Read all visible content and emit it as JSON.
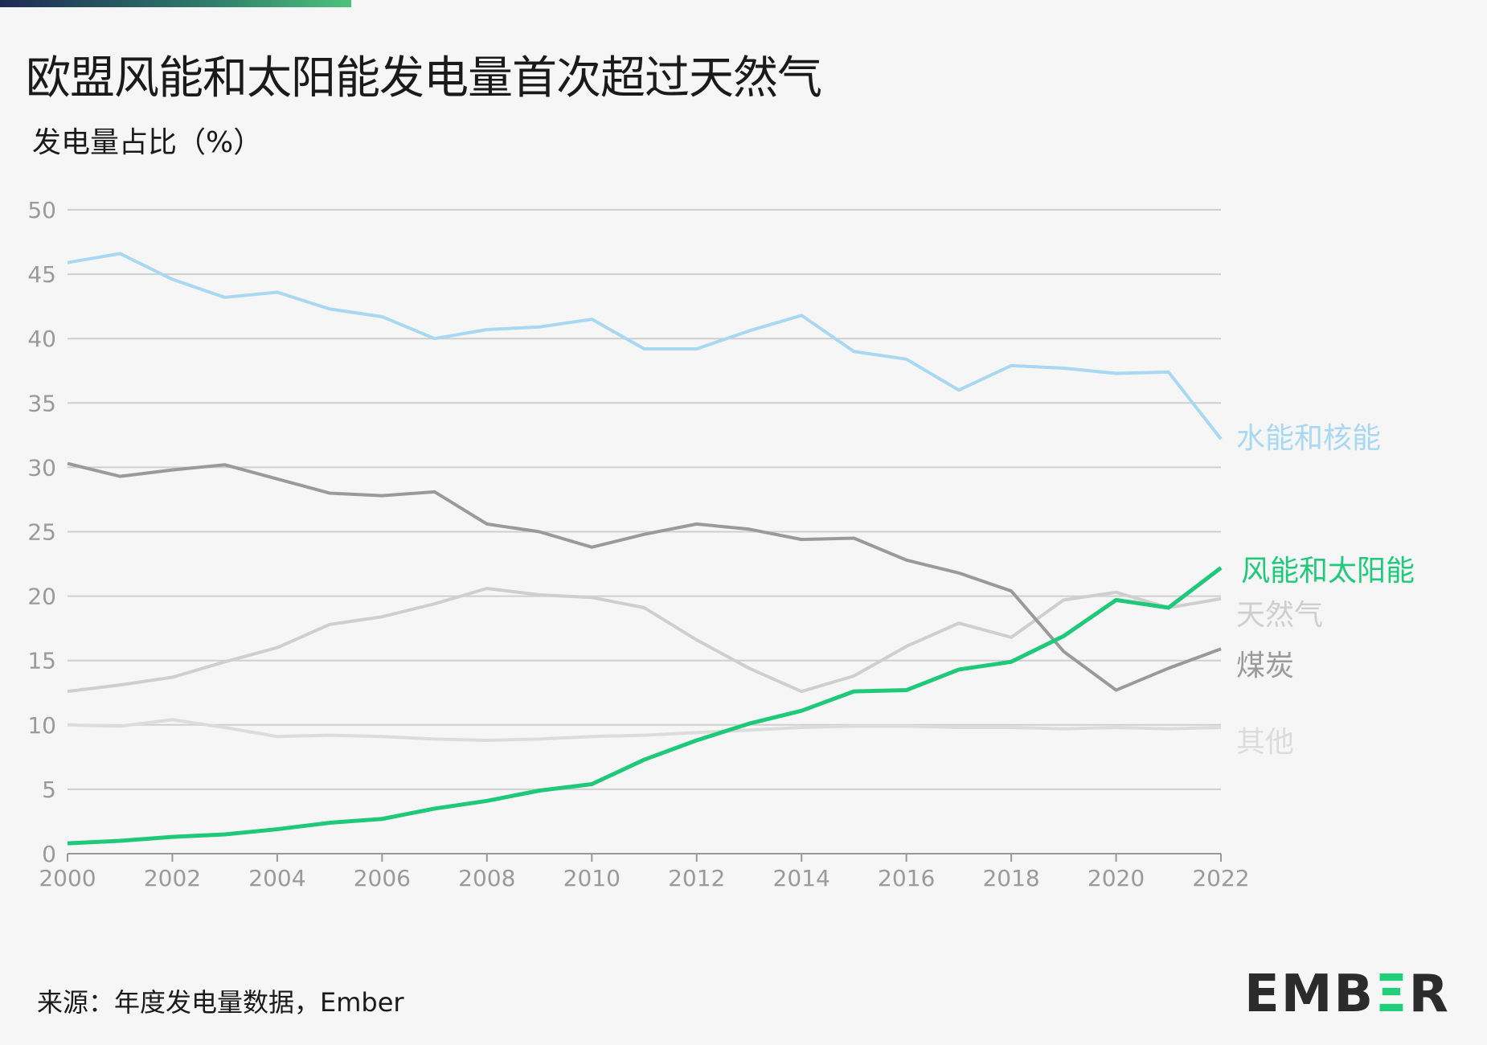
{
  "title": "欧盟风能和太阳能发电量首次超过天然气",
  "subtitle": "发电量占比（%）",
  "source": "来源：年度发电量数据，Ember",
  "logo": "EMBER",
  "chart_data": {
    "type": "line",
    "ylabel": "发电量占比（%）",
    "ylim": [
      0,
      50
    ],
    "yticks": [
      0,
      5,
      10,
      15,
      20,
      25,
      30,
      35,
      40,
      45,
      50
    ],
    "xlim": [
      2000,
      2022
    ],
    "xticks": [
      2000,
      2002,
      2004,
      2006,
      2008,
      2010,
      2012,
      2014,
      2016,
      2018,
      2020,
      2022
    ],
    "grid": "horizontal",
    "legend": "right-end labels",
    "x": [
      2000,
      2001,
      2002,
      2003,
      2004,
      2005,
      2006,
      2007,
      2008,
      2009,
      2010,
      2011,
      2012,
      2013,
      2014,
      2015,
      2016,
      2017,
      2018,
      2019,
      2020,
      2021,
      2022
    ],
    "series": [
      {
        "name": "水能和核能",
        "color": "#a8d8f2",
        "values": [
          45.9,
          46.6,
          44.6,
          43.2,
          43.6,
          42.3,
          41.7,
          40.0,
          40.7,
          40.9,
          41.5,
          39.2,
          39.2,
          40.6,
          41.8,
          39.0,
          38.4,
          36.0,
          37.9,
          37.7,
          37.3,
          37.4,
          32.2
        ]
      },
      {
        "name": "风能和太阳能",
        "color": "#1ec97a",
        "values": [
          0.8,
          1.0,
          1.3,
          1.5,
          1.9,
          2.4,
          2.7,
          3.5,
          4.1,
          4.9,
          5.4,
          7.3,
          8.8,
          10.1,
          11.1,
          12.6,
          12.7,
          14.3,
          14.9,
          16.9,
          19.7,
          19.1,
          22.2
        ]
      },
      {
        "name": "天然气",
        "color": "#cfcfcf",
        "values": [
          12.6,
          13.1,
          13.7,
          14.9,
          16.0,
          17.8,
          18.4,
          19.4,
          20.6,
          20.1,
          19.9,
          19.1,
          16.6,
          14.4,
          12.6,
          13.8,
          16.1,
          17.9,
          16.8,
          19.7,
          20.3,
          19.1,
          19.8
        ]
      },
      {
        "name": "煤炭",
        "color": "#9a9a9a",
        "values": [
          30.3,
          29.3,
          29.8,
          30.2,
          29.1,
          28.0,
          27.8,
          28.1,
          25.6,
          25.0,
          23.8,
          24.8,
          25.6,
          25.2,
          24.4,
          24.5,
          22.8,
          21.8,
          20.4,
          15.7,
          12.7,
          14.4,
          15.9
        ]
      },
      {
        "name": "其他",
        "color": "#dcdcdc",
        "values": [
          10.0,
          9.9,
          10.4,
          9.8,
          9.1,
          9.2,
          9.1,
          8.9,
          8.8,
          8.9,
          9.1,
          9.2,
          9.4,
          9.6,
          9.8,
          9.9,
          9.9,
          9.8,
          9.8,
          9.7,
          9.8,
          9.7,
          9.8
        ]
      }
    ]
  }
}
